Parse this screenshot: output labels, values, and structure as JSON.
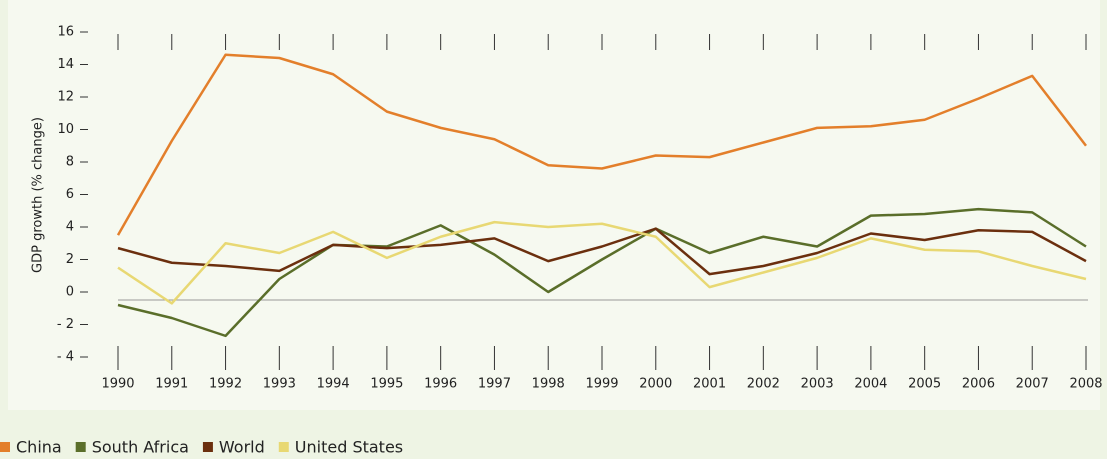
{
  "chart_data": {
    "type": "line",
    "y_label": "GDP growth (% change)",
    "categories": [
      "1990",
      "1991",
      "1992",
      "1993",
      "1994",
      "1995",
      "1996",
      "1997",
      "1998",
      "1999",
      "2000",
      "2001",
      "2002",
      "2003",
      "2004",
      "2005",
      "2006",
      "2007",
      "2008"
    ],
    "series": [
      {
        "name": "China",
        "color": "#e37f2b",
        "values": [
          3.5,
          9.3,
          14.6,
          14.4,
          13.4,
          11.1,
          10.1,
          9.4,
          7.8,
          7.6,
          8.4,
          8.3,
          9.2,
          10.1,
          10.2,
          10.6,
          11.9,
          13.3,
          9.0
        ]
      },
      {
        "name": "South Africa",
        "color": "#5a6e2a",
        "values": [
          -0.8,
          -1.6,
          -2.7,
          0.8,
          2.9,
          2.8,
          4.1,
          2.3,
          0.0,
          2.0,
          3.9,
          2.4,
          3.4,
          2.8,
          4.7,
          4.8,
          5.1,
          4.9,
          2.8
        ]
      },
      {
        "name": "World",
        "color": "#6b2f0e",
        "values": [
          2.7,
          1.8,
          1.6,
          1.3,
          2.9,
          2.7,
          2.9,
          3.3,
          1.9,
          2.8,
          3.9,
          1.1,
          1.6,
          2.4,
          3.6,
          3.2,
          3.8,
          3.7,
          1.9
        ]
      },
      {
        "name": "United States",
        "color": "#e8d873",
        "values": [
          1.5,
          -0.7,
          3.0,
          2.4,
          3.7,
          2.1,
          3.4,
          4.3,
          4.0,
          4.2,
          3.4,
          0.3,
          1.2,
          2.1,
          3.3,
          2.6,
          2.5,
          1.6,
          0.8
        ]
      }
    ],
    "ylim": [
      -4,
      16
    ],
    "yticks": [
      {
        "value": -4,
        "label": "- 4"
      },
      {
        "value": -2,
        "label": "- 2"
      },
      0,
      2,
      4,
      6,
      8,
      10,
      12,
      14,
      16
    ],
    "zero_line": true,
    "legend": "bottom-left"
  }
}
